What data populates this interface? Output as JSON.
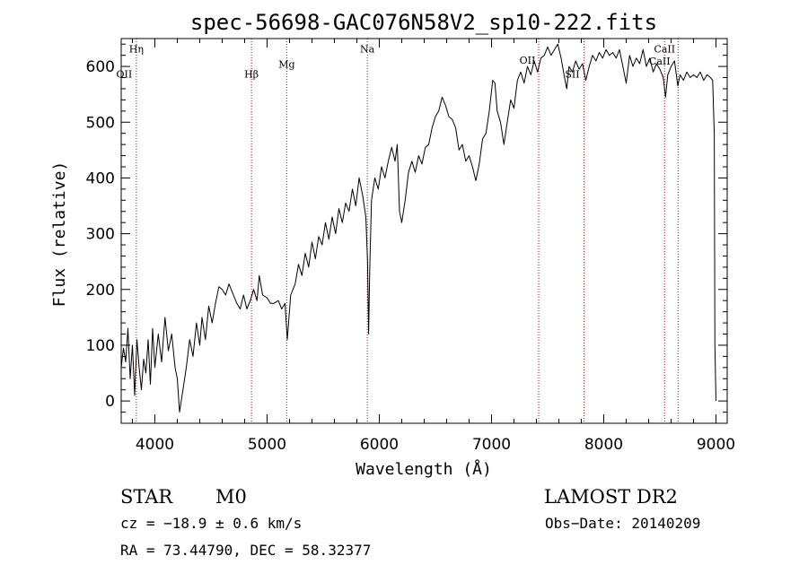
{
  "chart_data": {
    "type": "line",
    "title": "spec-56698-GAC076N58V2_sp10-222.fits",
    "xlabel": "Wavelength (Å)",
    "ylabel": "Flux (relative)",
    "xlim": [
      3700,
      9100
    ],
    "ylim": [
      -40,
      650
    ],
    "xticks": [
      4000,
      5000,
      6000,
      7000,
      8000,
      9000
    ],
    "yticks": [
      0,
      100,
      200,
      300,
      400,
      500,
      600
    ],
    "line_color": "#000000",
    "marker_color": "#cc0000",
    "series": [
      {
        "points": [
          [
            3700,
            60
          ],
          [
            3720,
            95
          ],
          [
            3740,
            70
          ],
          [
            3760,
            130
          ],
          [
            3780,
            40
          ],
          [
            3800,
            100
          ],
          [
            3820,
            10
          ],
          [
            3840,
            110
          ],
          [
            3860,
            60
          ],
          [
            3880,
            20
          ],
          [
            3900,
            75
          ],
          [
            3920,
            50
          ],
          [
            3940,
            110
          ],
          [
            3960,
            30
          ],
          [
            3980,
            130
          ],
          [
            4000,
            60
          ],
          [
            4030,
            120
          ],
          [
            4060,
            70
          ],
          [
            4090,
            150
          ],
          [
            4120,
            90
          ],
          [
            4150,
            120
          ],
          [
            4180,
            60
          ],
          [
            4200,
            40
          ],
          [
            4220,
            -20
          ],
          [
            4250,
            20
          ],
          [
            4280,
            60
          ],
          [
            4310,
            110
          ],
          [
            4340,
            80
          ],
          [
            4370,
            140
          ],
          [
            4400,
            100
          ],
          [
            4420,
            150
          ],
          [
            4450,
            110
          ],
          [
            4480,
            170
          ],
          [
            4510,
            140
          ],
          [
            4540,
            175
          ],
          [
            4570,
            205
          ],
          [
            4600,
            200
          ],
          [
            4630,
            190
          ],
          [
            4660,
            210
          ],
          [
            4700,
            190
          ],
          [
            4730,
            175
          ],
          [
            4760,
            165
          ],
          [
            4790,
            190
          ],
          [
            4820,
            165
          ],
          [
            4850,
            180
          ],
          [
            4880,
            200
          ],
          [
            4910,
            180
          ],
          [
            4930,
            225
          ],
          [
            4960,
            190
          ],
          [
            5000,
            185
          ],
          [
            5030,
            175
          ],
          [
            5060,
            175
          ],
          [
            5100,
            180
          ],
          [
            5130,
            165
          ],
          [
            5160,
            175
          ],
          [
            5180,
            110
          ],
          [
            5210,
            190
          ],
          [
            5250,
            210
          ],
          [
            5280,
            245
          ],
          [
            5310,
            225
          ],
          [
            5340,
            265
          ],
          [
            5370,
            240
          ],
          [
            5400,
            285
          ],
          [
            5430,
            255
          ],
          [
            5460,
            295
          ],
          [
            5490,
            280
          ],
          [
            5520,
            320
          ],
          [
            5550,
            290
          ],
          [
            5580,
            330
          ],
          [
            5610,
            300
          ],
          [
            5640,
            345
          ],
          [
            5670,
            320
          ],
          [
            5700,
            355
          ],
          [
            5730,
            340
          ],
          [
            5760,
            380
          ],
          [
            5790,
            350
          ],
          [
            5820,
            400
          ],
          [
            5850,
            370
          ],
          [
            5880,
            330
          ],
          [
            5895,
            250
          ],
          [
            5905,
            120
          ],
          [
            5915,
            240
          ],
          [
            5930,
            360
          ],
          [
            5960,
            400
          ],
          [
            5990,
            380
          ],
          [
            6020,
            420
          ],
          [
            6050,
            400
          ],
          [
            6080,
            430
          ],
          [
            6110,
            455
          ],
          [
            6140,
            430
          ],
          [
            6160,
            460
          ],
          [
            6180,
            340
          ],
          [
            6200,
            320
          ],
          [
            6230,
            360
          ],
          [
            6260,
            410
          ],
          [
            6290,
            430
          ],
          [
            6320,
            410
          ],
          [
            6350,
            440
          ],
          [
            6380,
            425
          ],
          [
            6410,
            455
          ],
          [
            6440,
            460
          ],
          [
            6470,
            490
          ],
          [
            6500,
            510
          ],
          [
            6530,
            520
          ],
          [
            6560,
            545
          ],
          [
            6590,
            530
          ],
          [
            6620,
            510
          ],
          [
            6650,
            505
          ],
          [
            6680,
            490
          ],
          [
            6710,
            450
          ],
          [
            6740,
            460
          ],
          [
            6770,
            430
          ],
          [
            6800,
            440
          ],
          [
            6830,
            420
          ],
          [
            6860,
            395
          ],
          [
            6890,
            425
          ],
          [
            6920,
            470
          ],
          [
            6950,
            480
          ],
          [
            6980,
            520
          ],
          [
            7010,
            575
          ],
          [
            7030,
            570
          ],
          [
            7050,
            520
          ],
          [
            7080,
            500
          ],
          [
            7110,
            460
          ],
          [
            7140,
            500
          ],
          [
            7170,
            540
          ],
          [
            7200,
            525
          ],
          [
            7230,
            575
          ],
          [
            7260,
            590
          ],
          [
            7290,
            570
          ],
          [
            7320,
            600
          ],
          [
            7350,
            585
          ],
          [
            7380,
            610
          ],
          [
            7410,
            590
          ],
          [
            7440,
            615
          ],
          [
            7470,
            620
          ],
          [
            7500,
            635
          ],
          [
            7530,
            620
          ],
          [
            7560,
            630
          ],
          [
            7590,
            640
          ],
          [
            7620,
            615
          ],
          [
            7650,
            580
          ],
          [
            7670,
            560
          ],
          [
            7690,
            600
          ],
          [
            7720,
            590
          ],
          [
            7750,
            610
          ],
          [
            7780,
            595
          ],
          [
            7810,
            605
          ],
          [
            7840,
            575
          ],
          [
            7870,
            600
          ],
          [
            7900,
            620
          ],
          [
            7930,
            610
          ],
          [
            7960,
            625
          ],
          [
            7990,
            615
          ],
          [
            8020,
            630
          ],
          [
            8050,
            620
          ],
          [
            8080,
            625
          ],
          [
            8110,
            615
          ],
          [
            8140,
            630
          ],
          [
            8170,
            600
          ],
          [
            8200,
            570
          ],
          [
            8230,
            620
          ],
          [
            8260,
            600
          ],
          [
            8290,
            615
          ],
          [
            8320,
            605
          ],
          [
            8350,
            630
          ],
          [
            8380,
            600
          ],
          [
            8410,
            615
          ],
          [
            8440,
            590
          ],
          [
            8470,
            605
          ],
          [
            8500,
            595
          ],
          [
            8530,
            580
          ],
          [
            8550,
            545
          ],
          [
            8570,
            585
          ],
          [
            8600,
            600
          ],
          [
            8630,
            610
          ],
          [
            8660,
            565
          ],
          [
            8680,
            585
          ],
          [
            8710,
            575
          ],
          [
            8740,
            590
          ],
          [
            8770,
            580
          ],
          [
            8800,
            585
          ],
          [
            8830,
            580
          ],
          [
            8860,
            590
          ],
          [
            8890,
            575
          ],
          [
            8920,
            585
          ],
          [
            8950,
            580
          ],
          [
            8970,
            575
          ],
          [
            8985,
            480
          ],
          [
            8990,
            100
          ],
          [
            9000,
            0
          ]
        ]
      }
    ],
    "spectral_lines": [
      {
        "label": "OII",
        "x": 3727,
        "y": 580
      },
      {
        "label": "Hη",
        "x": 3835,
        "y": 625
      },
      {
        "label": "Hβ",
        "x": 4861,
        "y": 580
      },
      {
        "label": "Mg",
        "x": 5175,
        "y": 598
      },
      {
        "label": "Na",
        "x": 5893,
        "y": 625
      },
      {
        "label": "OII",
        "x": 7320,
        "y": 605
      },
      {
        "label": "SII",
        "x": 7720,
        "y": 580
      },
      {
        "label": "CaII",
        "x": 8498,
        "y": 603
      },
      {
        "label": "CaII",
        "x": 8542,
        "y": 625
      }
    ],
    "marker_lines_x": [
      3835,
      4861,
      5175,
      5893,
      7420,
      7825,
      8542,
      8662
    ]
  },
  "info": {
    "object_type": "STAR",
    "subclass": "M0",
    "survey": "LAMOST DR2",
    "cz": "cz = −18.9 ± 0.6 km/s",
    "obs_date": "Obs−Date: 20140209",
    "coords": "RA =  73.44790, DEC =  58.32377"
  }
}
